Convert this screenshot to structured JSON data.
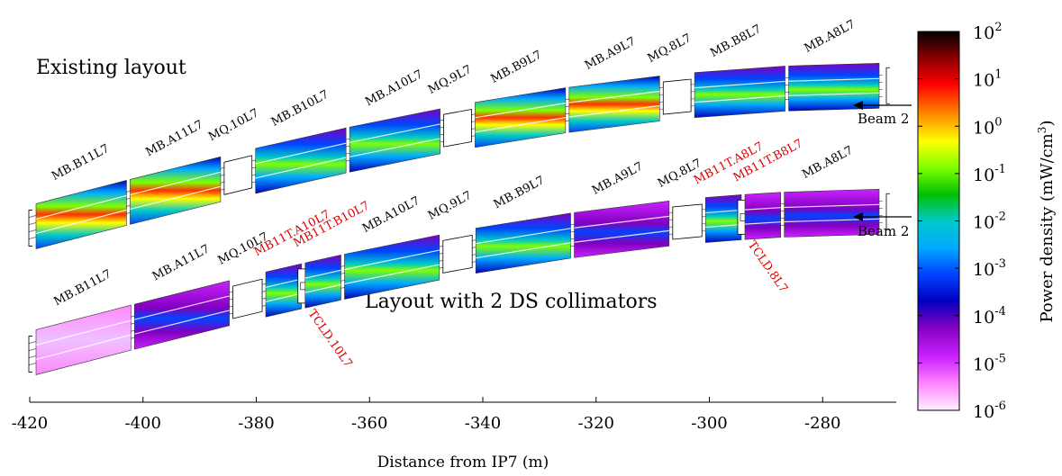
{
  "titles": {
    "top": "Existing layout",
    "bottom": "Layout with 2 DS collimators"
  },
  "beam_label": "Beam 2",
  "x_axis": {
    "label": "Distance from IP7 (m)",
    "ticks": [
      {
        "value": -420,
        "label": "-420"
      },
      {
        "value": -400,
        "label": "-400"
      },
      {
        "value": -380,
        "label": "-380"
      },
      {
        "value": -360,
        "label": "-360"
      },
      {
        "value": -340,
        "label": "-340"
      },
      {
        "value": -320,
        "label": "-320"
      },
      {
        "value": -300,
        "label": "-300"
      },
      {
        "value": -280,
        "label": "-280"
      }
    ]
  },
  "colorbar": {
    "label": "Power density (mW/cm³)",
    "scale": "log",
    "ticks": [
      {
        "exp": 2,
        "label": "10"
      },
      {
        "exp": 1,
        "label": "10"
      },
      {
        "exp": 0,
        "label": "10"
      },
      {
        "exp": -1,
        "label": "10"
      },
      {
        "exp": -2,
        "label": "10"
      },
      {
        "exp": -3,
        "label": "10"
      },
      {
        "exp": -4,
        "label": "10"
      },
      {
        "exp": -5,
        "label": "10"
      },
      {
        "exp": -6,
        "label": "10"
      }
    ],
    "colors": [
      "#000000",
      "#8b0000",
      "#ff0000",
      "#ff8c00",
      "#ffff00",
      "#7fff00",
      "#00c000",
      "#00c8c8",
      "#00aaff",
      "#0044ff",
      "#0000c0",
      "#8000c0",
      "#cc22ff",
      "#ff88ff",
      "#fff0ff"
    ]
  },
  "top_layout": {
    "elements": [
      {
        "name": "MB.B11L7",
        "color": "black",
        "kind": "dipole",
        "level": 0.85
      },
      {
        "name": "MB.A11L7",
        "color": "black",
        "kind": "dipole",
        "level": 0.85
      },
      {
        "name": "MQ.10L7",
        "color": "black",
        "kind": "quad"
      },
      {
        "name": "MB.B10L7",
        "color": "black",
        "kind": "dipole",
        "level": 0.45
      },
      {
        "name": "MB.A10L7",
        "color": "black",
        "kind": "dipole",
        "level": 0.35
      },
      {
        "name": "MQ.9L7",
        "color": "black",
        "kind": "quad"
      },
      {
        "name": "MB.B9L7",
        "color": "black",
        "kind": "dipole",
        "level": 0.8
      },
      {
        "name": "MB.A9L7",
        "color": "black",
        "kind": "dipole",
        "level": 0.85
      },
      {
        "name": "MQ.8L7",
        "color": "black",
        "kind": "quad"
      },
      {
        "name": "MB.B8L7",
        "color": "black",
        "kind": "dipole",
        "level": 0.4
      },
      {
        "name": "MB.A8L7",
        "color": "black",
        "kind": "dipole",
        "level": 0.45
      }
    ]
  },
  "bottom_layout": {
    "elements": [
      {
        "name": "MB.B11L7",
        "color": "black",
        "kind": "dipole",
        "level": 0.05
      },
      {
        "name": "MB.A11L7",
        "color": "black",
        "kind": "dipole",
        "level": 0.15
      },
      {
        "name": "MQ.10L7",
        "color": "black",
        "kind": "quad"
      },
      {
        "name": "MB11T.A10L7",
        "color": "red",
        "kind": "dipole",
        "level": 0.5
      },
      {
        "name": "MB11T.B10L7",
        "color": "red",
        "kind": "dipole",
        "level": 0.4
      },
      {
        "name": "MB.A10L7",
        "color": "black",
        "kind": "dipole",
        "level": 0.35
      },
      {
        "name": "MQ.9L7",
        "color": "black",
        "kind": "quad"
      },
      {
        "name": "MB.B9L7",
        "color": "black",
        "kind": "dipole",
        "level": 0.45
      },
      {
        "name": "MB.A9L7",
        "color": "black",
        "kind": "dipole",
        "level": 0.3
      },
      {
        "name": "MQ.8L7",
        "color": "black",
        "kind": "quad"
      },
      {
        "name": "MB11T.A8L7",
        "color": "red",
        "kind": "dipole",
        "level": 0.5
      },
      {
        "name": "MB11T.B8L7",
        "color": "red",
        "kind": "dipole",
        "level": 0.3
      },
      {
        "name": "MB.A8L7",
        "color": "black",
        "kind": "dipole",
        "level": 0.3
      }
    ],
    "collimators": [
      {
        "name": "TCLD.10L7",
        "color": "red"
      },
      {
        "name": "TCLD.8L7",
        "color": "red"
      }
    ]
  }
}
